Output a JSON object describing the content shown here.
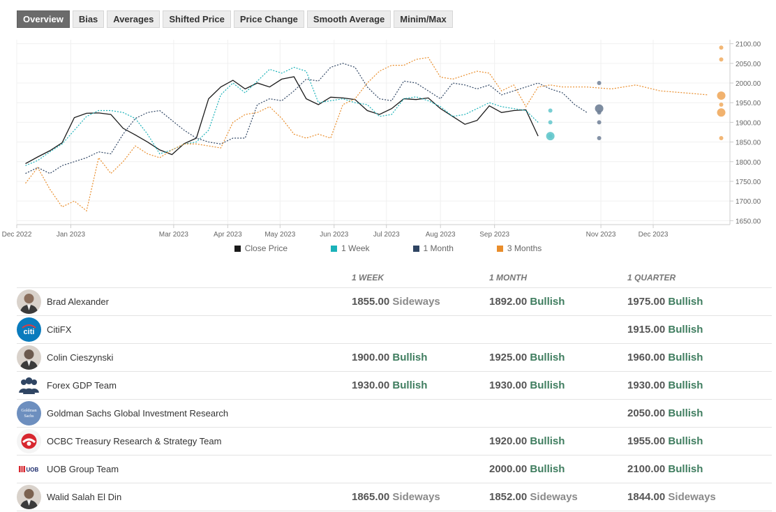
{
  "tabs": [
    {
      "label": "Overview",
      "active": true
    },
    {
      "label": "Bias"
    },
    {
      "label": "Averages"
    },
    {
      "label": "Shifted Price"
    },
    {
      "label": "Price Change"
    },
    {
      "label": "Smooth Average"
    },
    {
      "label": "Minim/Max"
    }
  ],
  "chart_data": {
    "type": "line",
    "x_unit": "date",
    "x_axis_range": [
      "2022-12-01",
      "2024-01-14"
    ],
    "y_axis_range": [
      1640,
      2110
    ],
    "y_ticks": [
      "1650.00",
      "1700.00",
      "1750.00",
      "1800.00",
      "1850.00",
      "1900.00",
      "1950.00",
      "2000.00",
      "2050.00",
      "2100.00"
    ],
    "y_axis_position": "right",
    "x_ticks": [
      {
        "label": "Dec 2022",
        "date": "2022-12-01"
      },
      {
        "label": "Jan 2023",
        "date": "2023-01-01"
      },
      {
        "label": "Mar 2023",
        "date": "2023-03-01"
      },
      {
        "label": "Apr 2023",
        "date": "2023-04-01"
      },
      {
        "label": "May 2023",
        "date": "2023-05-01"
      },
      {
        "label": "Jun 2023",
        "date": "2023-06-01"
      },
      {
        "label": "Jul 2023",
        "date": "2023-07-01"
      },
      {
        "label": "Aug 2023",
        "date": "2023-08-01"
      },
      {
        "label": "Sep 2023",
        "date": "2023-09-01"
      },
      {
        "label": "Nov 2023",
        "date": "2023-11-01"
      },
      {
        "label": "Dec 2023",
        "date": "2023-12-01"
      }
    ],
    "grid": true,
    "legend_position": "bottom-center",
    "series": [
      {
        "name": "Close Price",
        "color": "#1a1a1a",
        "dash": "solid",
        "points": [
          [
            "2022-12-06",
            1795
          ],
          [
            "2022-12-13",
            1812
          ],
          [
            "2022-12-20",
            1828
          ],
          [
            "2022-12-27",
            1848
          ],
          [
            "2023-01-03",
            1912
          ],
          [
            "2023-01-10",
            1923
          ],
          [
            "2023-01-17",
            1924
          ],
          [
            "2023-01-24",
            1920
          ],
          [
            "2023-01-31",
            1885
          ],
          [
            "2023-02-07",
            1868
          ],
          [
            "2023-02-14",
            1850
          ],
          [
            "2023-02-21",
            1830
          ],
          [
            "2023-02-28",
            1818
          ],
          [
            "2023-03-07",
            1846
          ],
          [
            "2023-03-14",
            1860
          ],
          [
            "2023-03-21",
            1960
          ],
          [
            "2023-03-28",
            1990
          ],
          [
            "2023-04-04",
            2007
          ],
          [
            "2023-04-11",
            1985
          ],
          [
            "2023-04-18",
            2000
          ],
          [
            "2023-04-25",
            1990
          ],
          [
            "2023-05-02",
            2010
          ],
          [
            "2023-05-09",
            2016
          ],
          [
            "2023-05-16",
            1960
          ],
          [
            "2023-05-23",
            1945
          ],
          [
            "2023-05-30",
            1964
          ],
          [
            "2023-06-06",
            1962
          ],
          [
            "2023-06-13",
            1958
          ],
          [
            "2023-06-20",
            1930
          ],
          [
            "2023-06-27",
            1920
          ],
          [
            "2023-07-04",
            1935
          ],
          [
            "2023-07-11",
            1960
          ],
          [
            "2023-07-18",
            1958
          ],
          [
            "2023-07-25",
            1962
          ],
          [
            "2023-08-01",
            1935
          ],
          [
            "2023-08-08",
            1915
          ],
          [
            "2023-08-15",
            1895
          ],
          [
            "2023-08-22",
            1905
          ],
          [
            "2023-08-29",
            1942
          ],
          [
            "2023-09-05",
            1925
          ],
          [
            "2023-09-12",
            1930
          ],
          [
            "2023-09-19",
            1932
          ],
          [
            "2023-09-26",
            1865
          ]
        ]
      },
      {
        "name": "1 Week",
        "color": "#1bb2b9",
        "dash": "dotted",
        "points": [
          [
            "2022-12-06",
            1790
          ],
          [
            "2022-12-13",
            1803
          ],
          [
            "2022-12-20",
            1825
          ],
          [
            "2022-12-27",
            1845
          ],
          [
            "2023-01-03",
            1880
          ],
          [
            "2023-01-10",
            1915
          ],
          [
            "2023-01-17",
            1930
          ],
          [
            "2023-01-24",
            1930
          ],
          [
            "2023-01-31",
            1925
          ],
          [
            "2023-02-07",
            1910
          ],
          [
            "2023-02-14",
            1870
          ],
          [
            "2023-02-21",
            1820
          ],
          [
            "2023-02-28",
            1830
          ],
          [
            "2023-03-07",
            1845
          ],
          [
            "2023-03-14",
            1850
          ],
          [
            "2023-03-21",
            1880
          ],
          [
            "2023-03-28",
            1970
          ],
          [
            "2023-04-04",
            2000
          ],
          [
            "2023-04-11",
            1975
          ],
          [
            "2023-04-18",
            2005
          ],
          [
            "2023-04-25",
            2035
          ],
          [
            "2023-05-02",
            2025
          ],
          [
            "2023-05-09",
            2040
          ],
          [
            "2023-05-16",
            2030
          ],
          [
            "2023-05-23",
            1950
          ],
          [
            "2023-05-30",
            1955
          ],
          [
            "2023-06-06",
            1960
          ],
          [
            "2023-06-13",
            1950
          ],
          [
            "2023-06-20",
            1945
          ],
          [
            "2023-06-27",
            1915
          ],
          [
            "2023-07-04",
            1920
          ],
          [
            "2023-07-11",
            1960
          ],
          [
            "2023-07-18",
            1965
          ],
          [
            "2023-07-25",
            1955
          ],
          [
            "2023-08-01",
            1940
          ],
          [
            "2023-08-08",
            1915
          ],
          [
            "2023-08-15",
            1920
          ],
          [
            "2023-08-22",
            1935
          ],
          [
            "2023-08-29",
            1950
          ],
          [
            "2023-09-05",
            1940
          ],
          [
            "2023-09-12",
            1935
          ],
          [
            "2023-09-19",
            1930
          ],
          [
            "2023-09-26",
            1900
          ]
        ]
      },
      {
        "name": "1 Month",
        "color": "#2f4563",
        "dash": "dotted",
        "points": [
          [
            "2022-12-06",
            1770
          ],
          [
            "2022-12-13",
            1785
          ],
          [
            "2022-12-20",
            1770
          ],
          [
            "2022-12-27",
            1790
          ],
          [
            "2023-01-03",
            1800
          ],
          [
            "2023-01-10",
            1810
          ],
          [
            "2023-01-17",
            1825
          ],
          [
            "2023-01-24",
            1820
          ],
          [
            "2023-01-31",
            1870
          ],
          [
            "2023-02-07",
            1910
          ],
          [
            "2023-02-14",
            1925
          ],
          [
            "2023-02-21",
            1930
          ],
          [
            "2023-02-28",
            1905
          ],
          [
            "2023-03-07",
            1880
          ],
          [
            "2023-03-14",
            1860
          ],
          [
            "2023-03-21",
            1850
          ],
          [
            "2023-03-28",
            1845
          ],
          [
            "2023-04-04",
            1860
          ],
          [
            "2023-04-11",
            1860
          ],
          [
            "2023-04-18",
            1945
          ],
          [
            "2023-04-25",
            1960
          ],
          [
            "2023-05-02",
            1955
          ],
          [
            "2023-05-09",
            1980
          ],
          [
            "2023-05-16",
            2010
          ],
          [
            "2023-05-23",
            2005
          ],
          [
            "2023-05-30",
            2040
          ],
          [
            "2023-06-06",
            2050
          ],
          [
            "2023-06-13",
            2040
          ],
          [
            "2023-06-20",
            1990
          ],
          [
            "2023-06-27",
            1960
          ],
          [
            "2023-07-04",
            1955
          ],
          [
            "2023-07-11",
            2005
          ],
          [
            "2023-07-18",
            2000
          ],
          [
            "2023-07-25",
            1980
          ],
          [
            "2023-08-01",
            1960
          ],
          [
            "2023-08-08",
            2000
          ],
          [
            "2023-08-15",
            1995
          ],
          [
            "2023-08-22",
            1985
          ],
          [
            "2023-08-29",
            1995
          ],
          [
            "2023-09-05",
            1970
          ],
          [
            "2023-09-12",
            1980
          ],
          [
            "2023-09-19",
            1990
          ],
          [
            "2023-09-26",
            2000
          ],
          [
            "2023-10-03",
            1985
          ],
          [
            "2023-10-10",
            1975
          ],
          [
            "2023-10-17",
            1945
          ],
          [
            "2023-10-24",
            1925
          ]
        ]
      },
      {
        "name": "3 Months",
        "color": "#e98d2b",
        "dash": "dotted",
        "points": [
          [
            "2022-12-06",
            1745
          ],
          [
            "2022-12-13",
            1785
          ],
          [
            "2022-12-20",
            1730
          ],
          [
            "2022-12-27",
            1685
          ],
          [
            "2023-01-03",
            1700
          ],
          [
            "2023-01-10",
            1675
          ],
          [
            "2023-01-17",
            1810
          ],
          [
            "2023-01-24",
            1770
          ],
          [
            "2023-01-31",
            1800
          ],
          [
            "2023-02-07",
            1840
          ],
          [
            "2023-02-14",
            1820
          ],
          [
            "2023-02-21",
            1810
          ],
          [
            "2023-02-28",
            1830
          ],
          [
            "2023-03-07",
            1845
          ],
          [
            "2023-03-14",
            1845
          ],
          [
            "2023-03-21",
            1840
          ],
          [
            "2023-03-28",
            1835
          ],
          [
            "2023-04-04",
            1900
          ],
          [
            "2023-04-11",
            1920
          ],
          [
            "2023-04-18",
            1925
          ],
          [
            "2023-04-25",
            1940
          ],
          [
            "2023-05-02",
            1910
          ],
          [
            "2023-05-09",
            1870
          ],
          [
            "2023-05-16",
            1860
          ],
          [
            "2023-05-23",
            1870
          ],
          [
            "2023-05-30",
            1860
          ],
          [
            "2023-06-06",
            1945
          ],
          [
            "2023-06-13",
            1960
          ],
          [
            "2023-06-20",
            2000
          ],
          [
            "2023-06-27",
            2030
          ],
          [
            "2023-07-04",
            2045
          ],
          [
            "2023-07-11",
            2045
          ],
          [
            "2023-07-18",
            2060
          ],
          [
            "2023-07-25",
            2065
          ],
          [
            "2023-08-01",
            2015
          ],
          [
            "2023-08-08",
            2010
          ],
          [
            "2023-08-15",
            2020
          ],
          [
            "2023-08-22",
            2030
          ],
          [
            "2023-08-29",
            2025
          ],
          [
            "2023-09-05",
            1980
          ],
          [
            "2023-09-12",
            1995
          ],
          [
            "2023-09-19",
            1940
          ],
          [
            "2023-09-26",
            1990
          ],
          [
            "2023-10-03",
            1995
          ],
          [
            "2023-10-10",
            1990
          ],
          [
            "2023-10-24",
            1990
          ],
          [
            "2023-11-07",
            1985
          ],
          [
            "2023-11-21",
            1995
          ],
          [
            "2023-12-05",
            1980
          ],
          [
            "2023-12-19",
            1975
          ],
          [
            "2024-01-01",
            1970
          ]
        ]
      }
    ],
    "forecast_dots": [
      {
        "series": "1 Week",
        "date": "2023-10-03",
        "values": [
          1930,
          1900,
          1865
        ],
        "average": 1865
      },
      {
        "series": "1 Month",
        "date": "2023-10-31",
        "values": [
          2000,
          1925,
          1900,
          1860
        ],
        "average": 1935
      },
      {
        "series": "3 Months",
        "date": "2024-01-09",
        "values": [
          2090,
          2060,
          1945,
          1860
        ],
        "average_points": [
          1968,
          1925
        ]
      }
    ]
  },
  "legend": [
    {
      "label": "Close Price",
      "color": "#1a1a1a"
    },
    {
      "label": "1 Week",
      "color": "#1bb2b9"
    },
    {
      "label": "1 Month",
      "color": "#2f4563"
    },
    {
      "label": "3 Months",
      "color": "#e98d2b"
    }
  ],
  "table": {
    "headers": [
      "",
      "1 WEEK",
      "1 MONTH",
      "1 QUARTER"
    ],
    "rows": [
      {
        "name": "Brad Alexander",
        "avatar": "person-photo",
        "avatar_color": "#8a6e5c",
        "week": {
          "value": "1855.00",
          "bias": "Sideways"
        },
        "month": {
          "value": "1892.00",
          "bias": "Bullish"
        },
        "quarter": {
          "value": "1975.00",
          "bias": "Bullish"
        }
      },
      {
        "name": "CitiFX",
        "avatar": "citi-logo",
        "avatar_color": "#0a7bbd",
        "avatar_text": "citi",
        "week": null,
        "month": null,
        "quarter": {
          "value": "1915.00",
          "bias": "Bullish"
        }
      },
      {
        "name": "Colin Cieszynski",
        "avatar": "person-photo",
        "avatar_color": "#6b5a4e",
        "week": {
          "value": "1900.00",
          "bias": "Bullish"
        },
        "month": {
          "value": "1925.00",
          "bias": "Bullish"
        },
        "quarter": {
          "value": "1960.00",
          "bias": "Bullish"
        }
      },
      {
        "name": "Forex GDP Team",
        "avatar": "team-icon",
        "avatar_color": "#2f4563",
        "week": {
          "value": "1930.00",
          "bias": "Bullish"
        },
        "month": {
          "value": "1930.00",
          "bias": "Bullish"
        },
        "quarter": {
          "value": "1930.00",
          "bias": "Bullish"
        }
      },
      {
        "name": "Goldman Sachs Global Investment Research",
        "avatar": "goldman-logo",
        "avatar_color": "#6d8fbf",
        "avatar_text": "Goldman Sachs",
        "week": null,
        "month": null,
        "quarter": {
          "value": "2050.00",
          "bias": "Bullish"
        }
      },
      {
        "name": "OCBC Treasury Research & Strategy Team",
        "avatar": "ocbc-logo",
        "avatar_color": "#d7262e",
        "week": null,
        "month": {
          "value": "1920.00",
          "bias": "Bullish"
        },
        "quarter": {
          "value": "1955.00",
          "bias": "Bullish"
        }
      },
      {
        "name": "UOB Group Team",
        "avatar": "uob-logo",
        "avatar_color": "#1b2a6b",
        "avatar_text": "UOB",
        "week": null,
        "month": {
          "value": "2000.00",
          "bias": "Bullish"
        },
        "quarter": {
          "value": "2100.00",
          "bias": "Bullish"
        }
      },
      {
        "name": "Walid Salah El Din",
        "avatar": "person-photo",
        "avatar_color": "#7b6250",
        "week": {
          "value": "1865.00",
          "bias": "Sideways"
        },
        "month": {
          "value": "1852.00",
          "bias": "Sideways"
        },
        "quarter": {
          "value": "1844.00",
          "bias": "Sideways"
        }
      }
    ]
  }
}
